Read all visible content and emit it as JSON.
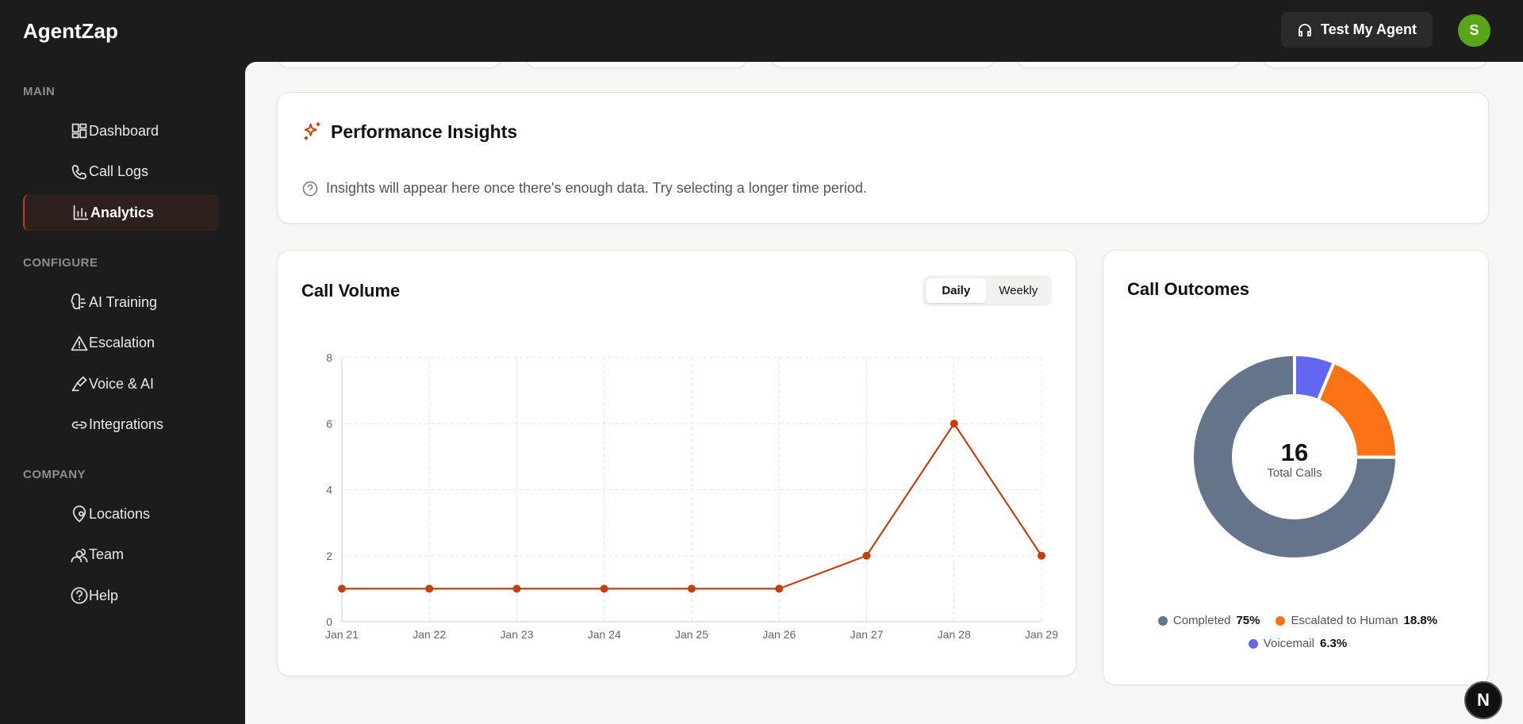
{
  "brand": "AgentZap",
  "header": {
    "button": "Test My Agent",
    "avatar": "S"
  },
  "nav": [
    {
      "label": "MAIN",
      "items": [
        {
          "label": "Dashboard"
        },
        {
          "label": "Call Logs"
        },
        {
          "label": "Analytics",
          "active": true
        }
      ]
    },
    {
      "label": "CONFIGURE",
      "items": [
        {
          "label": "AI Training"
        },
        {
          "label": "Escalation"
        },
        {
          "label": "Voice & AI"
        },
        {
          "label": "Integrations"
        }
      ]
    },
    {
      "label": "COMPANY",
      "items": [
        {
          "label": "Locations"
        },
        {
          "label": "Team"
        },
        {
          "label": "Help"
        }
      ]
    }
  ],
  "insights": {
    "title": "Performance Insights",
    "message": "Insights will appear here once there's enough data. Try selecting a longer time period."
  },
  "toggle": [
    {
      "label": "Daily",
      "active": true
    },
    {
      "label": "Weekly"
    }
  ],
  "dev_badge": "N",
  "chart_data": [
    {
      "type": "line",
      "title": "Call Volume",
      "categories": [
        "Jan 21",
        "Jan 22",
        "Jan 23",
        "Jan 24",
        "Jan 25",
        "Jan 26",
        "Jan 27",
        "Jan 28",
        "Jan 29"
      ],
      "values": [
        1,
        1,
        1,
        1,
        1,
        1,
        2,
        6,
        2
      ],
      "color": "#c2410c",
      "ylim": [
        0,
        8
      ],
      "yticks": [
        0,
        2,
        4,
        6,
        8
      ],
      "grid": true
    },
    {
      "type": "donut",
      "title": "Call Outcomes",
      "center_value": 16,
      "center_label": "Total Calls",
      "categories": [
        "Completed",
        "Escalated to Human",
        "Voicemail"
      ],
      "values": [
        75,
        18.8,
        6.3
      ],
      "value_labels": [
        "75%",
        "18.8%",
        "6.3%"
      ],
      "colors": [
        "#64748b",
        "#f97316",
        "#6366f1"
      ]
    }
  ]
}
